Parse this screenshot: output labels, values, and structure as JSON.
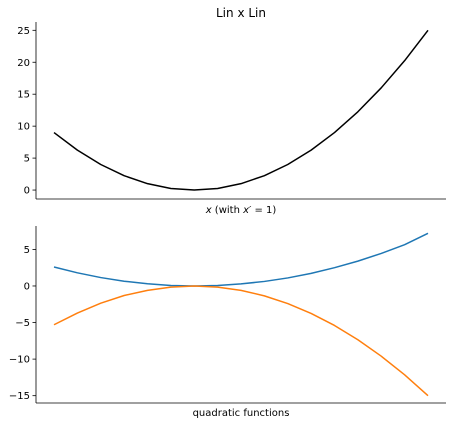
{
  "chart_data": [
    {
      "type": "line",
      "title": "Lin x Lin",
      "xlabel_prefix": "x",
      "xlabel_suffix": " (with ",
      "xlabel_var": "x",
      "xlabel_prime": "′",
      "xlabel_eq": " = 1)",
      "ylabel": "",
      "x_ticks_visible": false,
      "ylim": [
        -1.4,
        26.3
      ],
      "yticks": [
        0,
        5,
        10,
        15,
        20,
        25
      ],
      "ytick_labels": [
        "0",
        "5",
        "10",
        "15",
        "20",
        "25"
      ],
      "grid": false,
      "series": [
        {
          "color": "#000000",
          "x": [
            -3.0,
            -2.5,
            -2.0,
            -1.5,
            -1.0,
            -0.5,
            0.0,
            0.5,
            1.0,
            1.5,
            2.0,
            2.5,
            3.0,
            3.5,
            4.0,
            4.5,
            5.0
          ],
          "y": [
            9.0,
            6.25,
            4.0,
            2.25,
            1.0,
            0.25,
            0.0,
            0.25,
            1.0,
            2.25,
            4.0,
            6.25,
            9.0,
            12.25,
            16.0,
            20.25,
            25.0
          ]
        }
      ]
    },
    {
      "type": "line",
      "xlabel": "quadratic functions",
      "ylabel": "",
      "x_ticks_visible": false,
      "ylim": [
        -16.0,
        8.2
      ],
      "yticks": [
        5,
        0,
        -5,
        -10,
        -15
      ],
      "ytick_labels": [
        "5",
        "0",
        "−5",
        "−10",
        "−15"
      ],
      "grid": false,
      "series": [
        {
          "color": "#1f77b4",
          "x": [
            -3.0,
            -2.5,
            -2.0,
            -1.5,
            -1.0,
            -0.5,
            0.0,
            0.5,
            1.0,
            1.5,
            2.0,
            2.5,
            3.0,
            3.5,
            4.0,
            4.5,
            5.0
          ],
          "y": [
            2.6,
            1.8,
            1.15,
            0.65,
            0.3,
            0.07,
            0.0,
            0.07,
            0.28,
            0.62,
            1.1,
            1.72,
            2.5,
            3.4,
            4.45,
            5.65,
            7.2
          ]
        },
        {
          "color": "#ff7f0e",
          "x": [
            -3.0,
            -2.5,
            -2.0,
            -1.5,
            -1.0,
            -0.5,
            0.0,
            0.5,
            1.0,
            1.5,
            2.0,
            2.5,
            3.0,
            3.5,
            4.0,
            4.5,
            5.0
          ],
          "y": [
            -5.3,
            -3.7,
            -2.35,
            -1.3,
            -0.6,
            -0.15,
            0.0,
            -0.15,
            -0.6,
            -1.35,
            -2.4,
            -3.75,
            -5.4,
            -7.35,
            -9.6,
            -12.15,
            -15.0
          ]
        }
      ]
    }
  ]
}
